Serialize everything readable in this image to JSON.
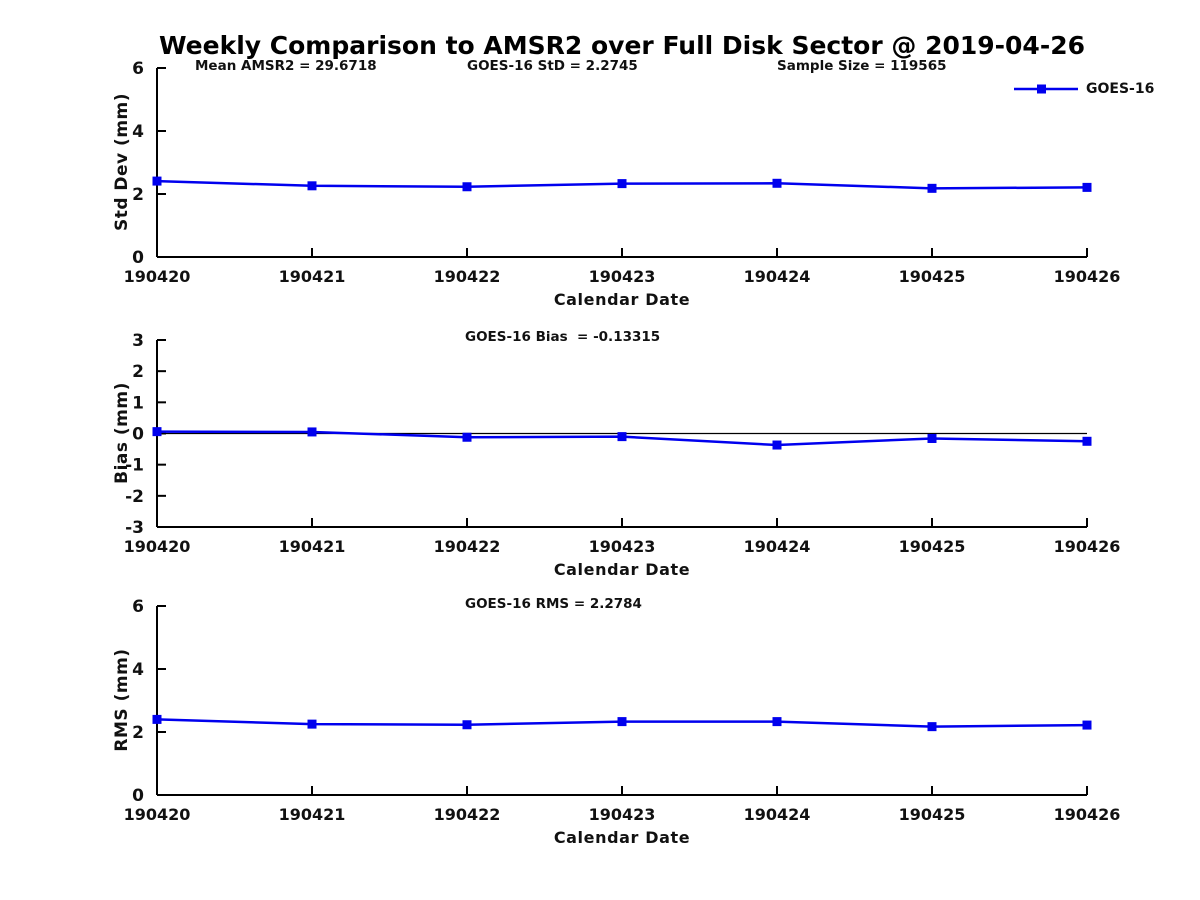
{
  "title": "Weekly Comparison to AMSR2 over Full Disk Sector @ 2019-04-26",
  "legend": {
    "label": "GOES-16"
  },
  "colors": {
    "series": "#0000EE",
    "axis": "#000000",
    "text": "#111111"
  },
  "chart_data": [
    {
      "type": "line",
      "ylabel": "Std Dev (mm)",
      "xlabel": "Calendar Date",
      "ylim": [
        0,
        6
      ],
      "yticks": [
        0,
        2,
        4,
        6
      ],
      "categories": [
        "190420",
        "190421",
        "190422",
        "190423",
        "190424",
        "190425",
        "190426"
      ],
      "annotations": [
        "Mean AMSR2 = 29.6718",
        "GOES-16 StD = 2.2745",
        "Sample Size = 119565"
      ],
      "legend_entries": [
        "GOES-16"
      ],
      "grid": false,
      "series": [
        {
          "name": "GOES-16",
          "values": [
            2.41,
            2.26,
            2.23,
            2.33,
            2.34,
            2.18,
            2.21
          ]
        }
      ]
    },
    {
      "type": "line",
      "ylabel": "Bias (mm)",
      "xlabel": "Calendar Date",
      "ylim": [
        -3,
        3
      ],
      "yticks": [
        3,
        2,
        1,
        0,
        -1,
        -2,
        -3
      ],
      "zero_line": true,
      "categories": [
        "190420",
        "190421",
        "190422",
        "190423",
        "190424",
        "190425",
        "190426"
      ],
      "annotations": [
        "GOES-16 Bias  = -0.13315"
      ],
      "grid": false,
      "series": [
        {
          "name": "GOES-16",
          "values": [
            0.06,
            0.05,
            -0.12,
            -0.1,
            -0.37,
            -0.16,
            -0.25
          ]
        }
      ]
    },
    {
      "type": "line",
      "ylabel": "RMS (mm)",
      "xlabel": "Calendar Date",
      "ylim": [
        0,
        6
      ],
      "yticks": [
        0,
        2,
        4,
        6
      ],
      "categories": [
        "190420",
        "190421",
        "190422",
        "190423",
        "190424",
        "190425",
        "190426"
      ],
      "annotations": [
        "GOES-16 RMS = 2.2784"
      ],
      "grid": false,
      "series": [
        {
          "name": "GOES-16",
          "values": [
            2.4,
            2.25,
            2.23,
            2.33,
            2.33,
            2.17,
            2.22
          ]
        }
      ]
    }
  ]
}
